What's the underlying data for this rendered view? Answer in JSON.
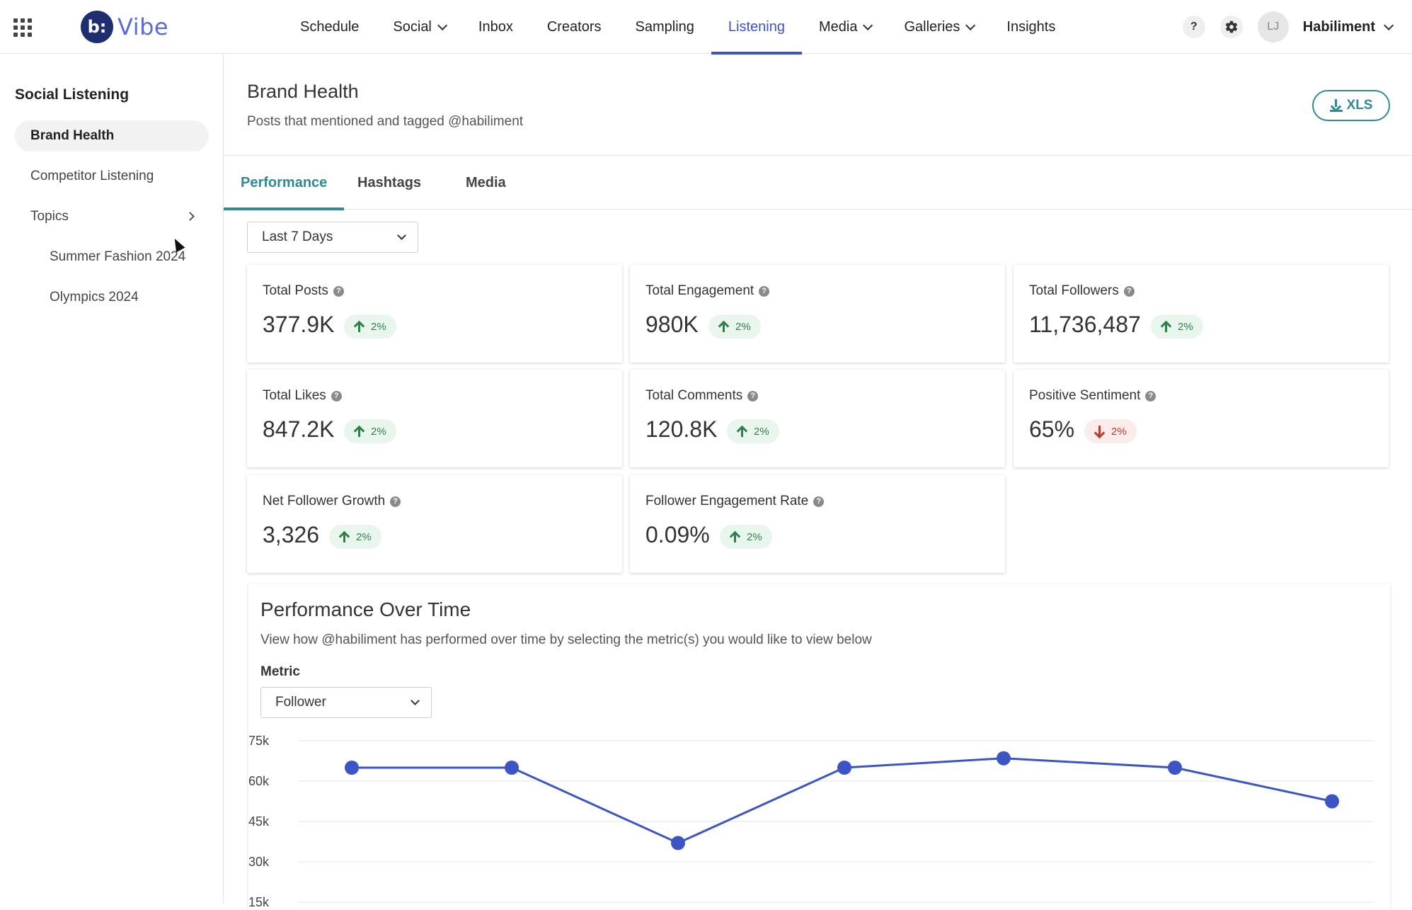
{
  "app": {
    "name": "Vibe",
    "logo_mark": "b:"
  },
  "nav": {
    "items": [
      {
        "label": "Schedule",
        "dropdown": false,
        "active": false
      },
      {
        "label": "Social",
        "dropdown": true,
        "active": false
      },
      {
        "label": "Inbox",
        "dropdown": false,
        "active": false
      },
      {
        "label": "Creators",
        "dropdown": false,
        "active": false
      },
      {
        "label": "Sampling",
        "dropdown": false,
        "active": false
      },
      {
        "label": "Listening",
        "dropdown": false,
        "active": true
      },
      {
        "label": "Media",
        "dropdown": true,
        "active": false
      },
      {
        "label": "Galleries",
        "dropdown": true,
        "active": false
      },
      {
        "label": "Insights",
        "dropdown": false,
        "active": false
      }
    ],
    "help_label": "?",
    "avatar_initials": "LJ",
    "account_name": "Habiliment"
  },
  "sidebar": {
    "title": "Social Listening",
    "items": [
      {
        "label": "Brand Health",
        "active": true
      },
      {
        "label": "Competitor Listening",
        "active": false
      },
      {
        "label": "Topics",
        "active": false
      }
    ],
    "topics": [
      "Summer Fashion 2024",
      "Olympics 2024"
    ]
  },
  "header": {
    "title": "Brand Health",
    "subtitle": "Posts that mentioned and tagged @habiliment",
    "export_label": "XLS"
  },
  "tabs": [
    {
      "label": "Performance",
      "active": true
    },
    {
      "label": "Hashtags",
      "active": false
    },
    {
      "label": "Media",
      "active": false
    }
  ],
  "date_range": {
    "value": "Last 7 Days"
  },
  "stats": [
    {
      "label": "Total Posts",
      "value": "377.9K",
      "change": "2%",
      "direction": "up"
    },
    {
      "label": "Total Engagement",
      "value": "980K",
      "change": "2%",
      "direction": "up"
    },
    {
      "label": "Total Followers",
      "value": "11,736,487",
      "change": "2%",
      "direction": "up"
    },
    {
      "label": "Total Likes",
      "value": "847.2K",
      "change": "2%",
      "direction": "up"
    },
    {
      "label": "Total Comments",
      "value": "120.8K",
      "change": "2%",
      "direction": "up"
    },
    {
      "label": "Positive Sentiment",
      "value": "65%",
      "change": "2%",
      "direction": "down"
    },
    {
      "label": "Net Follower Growth",
      "value": "3,326",
      "change": "2%",
      "direction": "up"
    },
    {
      "label": "Follower Engagement Rate",
      "value": "0.09%",
      "change": "2%",
      "direction": "up"
    }
  ],
  "performance": {
    "title": "Performance Over Time",
    "subtitle": "View how @habiliment has performed over time by selecting the metric(s) you would like to view below",
    "metric_label": "Metric",
    "metric_value": "Follower"
  },
  "chart_data": {
    "type": "line",
    "y_ticks": [
      "75k",
      "60k",
      "45k",
      "30k",
      "15k"
    ],
    "ylim": [
      15000,
      75000
    ],
    "series": [
      {
        "values": [
          65000,
          65000,
          37000,
          65000,
          68500,
          65000,
          52500
        ]
      }
    ],
    "line_color": "#3d55c4",
    "grid": true
  },
  "colors": {
    "primary": "#3d55c4",
    "accent": "#2f8a93",
    "up": "#2f7f48",
    "down": "#c0392b"
  }
}
